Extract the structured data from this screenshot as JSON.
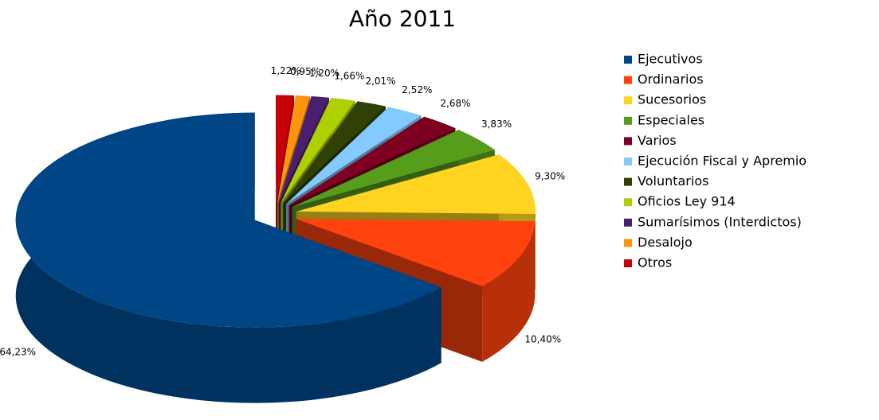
{
  "chart_data": {
    "type": "pie",
    "title": "Año 2011",
    "categories": [
      "Ejecutivos",
      "Ordinarios",
      "Sucesorios",
      "Especiales",
      "Varios",
      "Ejecución Fiscal y Apremio",
      "Voluntarios",
      "Oficios Ley 914",
      "Sumarísimos (Interdictos)",
      "Desalojo",
      "Otros"
    ],
    "values": [
      64.23,
      10.4,
      9.3,
      3.83,
      2.68,
      2.52,
      2.01,
      1.66,
      1.2,
      0.95,
      1.22
    ],
    "value_labels": [
      "64,23%",
      "10,40%",
      "9,30%",
      "3,83%",
      "2,68%",
      "2,52%",
      "2,01%",
      "1,66%",
      "1,20%",
      "0,95%",
      "1,22%"
    ],
    "colors": [
      "#004586",
      "#ff420e",
      "#ffd320",
      "#579d1c",
      "#7e0021",
      "#83caff",
      "#314004",
      "#aecf00",
      "#4b1f6f",
      "#ff950e",
      "#c5000b"
    ],
    "legend": "right"
  }
}
